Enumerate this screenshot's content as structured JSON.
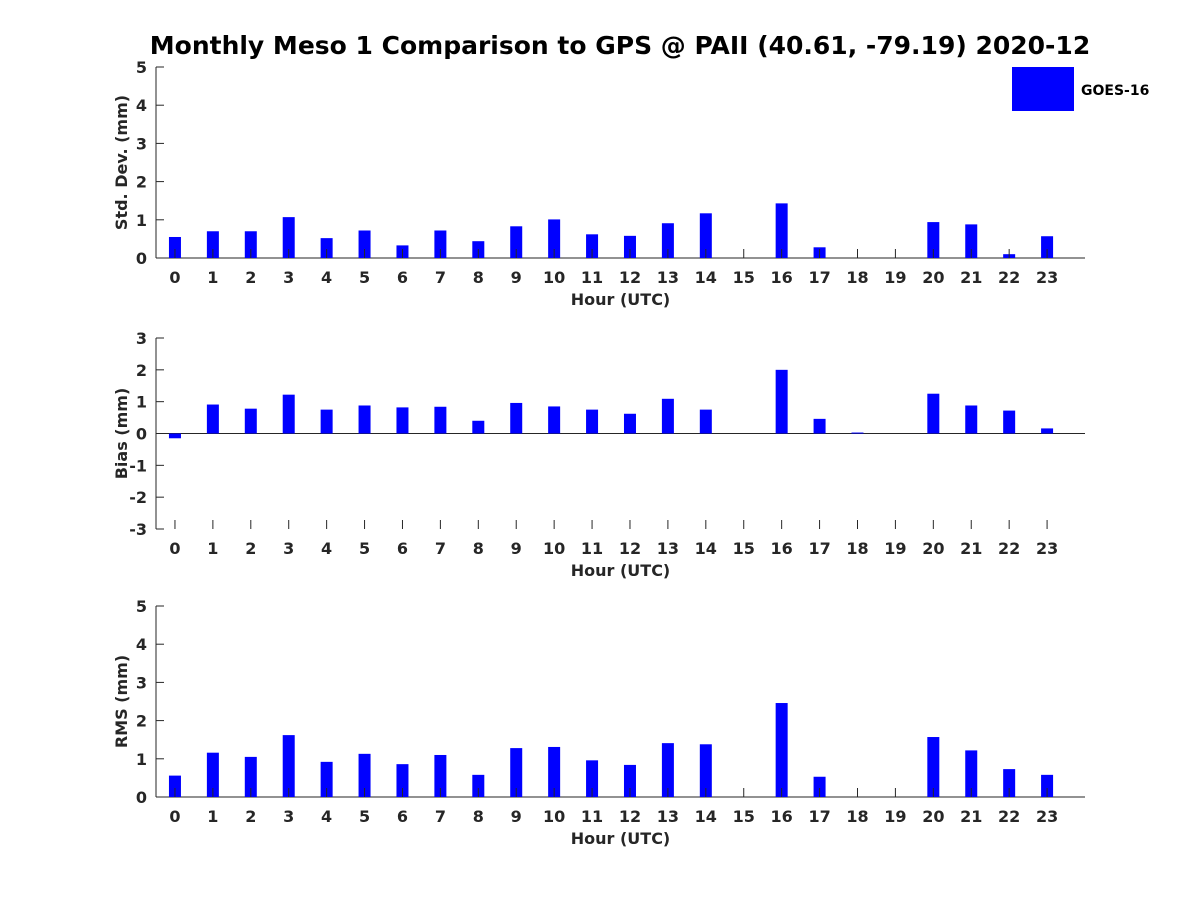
{
  "figure_title": "Monthly Meso 1 Comparison to GPS @ PAII (40.61, -79.19) 2020-12",
  "legend": {
    "label": "GOES-16",
    "color": "#0000ff"
  },
  "chart_data": [
    {
      "type": "bar",
      "title": "Monthly Meso 1 Comparison to GPS @ PAII (40.61, -79.19) 2020-12",
      "xlabel": "Hour (UTC)",
      "ylabel": "Std. Dev. (mm)",
      "ylim": [
        0,
        5
      ],
      "yticks": [
        "0",
        "1",
        "2",
        "3",
        "4",
        "5"
      ],
      "categories": [
        "0",
        "1",
        "2",
        "3",
        "4",
        "5",
        "6",
        "7",
        "8",
        "9",
        "10",
        "11",
        "12",
        "13",
        "14",
        "15",
        "16",
        "17",
        "18",
        "19",
        "20",
        "21",
        "22",
        "23"
      ],
      "series": [
        {
          "name": "GOES-16",
          "color": "#0000ff",
          "values": [
            0.55,
            0.7,
            0.7,
            1.07,
            0.52,
            0.72,
            0.33,
            0.72,
            0.44,
            0.83,
            1.01,
            0.62,
            0.58,
            0.91,
            1.17,
            null,
            1.43,
            0.28,
            null,
            null,
            0.94,
            0.88,
            0.1,
            0.57
          ]
        }
      ],
      "legend": "top-right"
    },
    {
      "type": "bar",
      "title": "",
      "xlabel": "Hour (UTC)",
      "ylabel": "Bias (mm)",
      "ylim": [
        -3,
        3
      ],
      "yticks": [
        "-3",
        "-2",
        "-1",
        "0",
        "1",
        "2",
        "3"
      ],
      "categories": [
        "0",
        "1",
        "2",
        "3",
        "4",
        "5",
        "6",
        "7",
        "8",
        "9",
        "10",
        "11",
        "12",
        "13",
        "14",
        "15",
        "16",
        "17",
        "18",
        "19",
        "20",
        "21",
        "22",
        "23"
      ],
      "series": [
        {
          "name": "GOES-16",
          "color": "#0000ff",
          "values": [
            -0.15,
            0.91,
            0.78,
            1.22,
            0.75,
            0.88,
            0.82,
            0.84,
            0.4,
            0.96,
            0.85,
            0.75,
            0.62,
            1.09,
            0.75,
            null,
            2.0,
            0.46,
            0.03,
            null,
            1.25,
            0.88,
            0.72,
            0.16
          ]
        }
      ]
    },
    {
      "type": "bar",
      "title": "",
      "xlabel": "Hour (UTC)",
      "ylabel": "RMS (mm)",
      "ylim": [
        0,
        5
      ],
      "yticks": [
        "0",
        "1",
        "2",
        "3",
        "4",
        "5"
      ],
      "categories": [
        "0",
        "1",
        "2",
        "3",
        "4",
        "5",
        "6",
        "7",
        "8",
        "9",
        "10",
        "11",
        "12",
        "13",
        "14",
        "15",
        "16",
        "17",
        "18",
        "19",
        "20",
        "21",
        "22",
        "23"
      ],
      "series": [
        {
          "name": "GOES-16",
          "color": "#0000ff",
          "values": [
            0.56,
            1.16,
            1.05,
            1.62,
            0.92,
            1.13,
            0.86,
            1.1,
            0.58,
            1.28,
            1.31,
            0.96,
            0.84,
            1.41,
            1.38,
            null,
            2.46,
            0.53,
            null,
            null,
            1.57,
            1.22,
            0.73,
            0.58
          ]
        }
      ]
    }
  ]
}
